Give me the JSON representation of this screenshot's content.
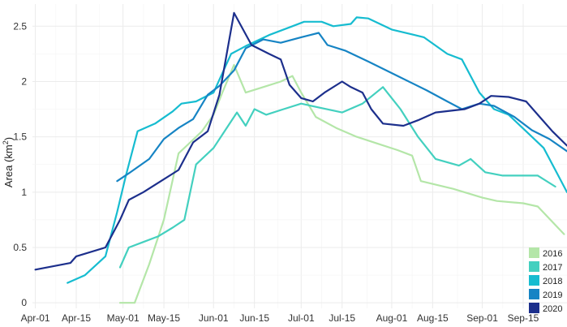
{
  "chart_data": {
    "type": "line",
    "title": "",
    "xlabel": "",
    "ylabel": "Area",
    "ylabel_unit_base": "km",
    "ylabel_unit_exp": "2",
    "x_ticks": [
      "Apr-01",
      "Apr-15",
      "May-01",
      "May-15",
      "Jun-01",
      "Jun-15",
      "Jul-01",
      "Jul-15",
      "Aug-01",
      "Aug-15",
      "Sep-01",
      "Sep-15"
    ],
    "xlim": [
      "2020-03-31",
      "2020-09-30"
    ],
    "y_ticks": [
      "0",
      "0.5",
      "1",
      "1.5",
      "2",
      "2.5"
    ],
    "ylim": [
      -0.05,
      2.7
    ],
    "grid": true,
    "legend_position": "bottom-right",
    "series": [
      {
        "name": "2016",
        "color": "#b4e6a8",
        "points": [
          [
            "2020-04-30",
            0.0
          ],
          [
            "2020-05-05",
            0.0
          ],
          [
            "2020-05-10",
            0.35
          ],
          [
            "2020-05-15",
            0.75
          ],
          [
            "2020-05-20",
            1.35
          ],
          [
            "2020-05-24",
            1.45
          ],
          [
            "2020-05-28",
            1.55
          ],
          [
            "2020-06-01",
            1.7
          ],
          [
            "2020-06-04",
            1.9
          ],
          [
            "2020-06-08",
            2.15
          ],
          [
            "2020-06-12",
            1.9
          ],
          [
            "2020-06-18",
            1.95
          ],
          [
            "2020-06-24",
            2.0
          ],
          [
            "2020-06-28",
            2.05
          ],
          [
            "2020-07-01",
            1.9
          ],
          [
            "2020-07-06",
            1.68
          ],
          [
            "2020-07-13",
            1.58
          ],
          [
            "2020-07-20",
            1.5
          ],
          [
            "2020-07-27",
            1.44
          ],
          [
            "2020-08-03",
            1.38
          ],
          [
            "2020-08-08",
            1.33
          ],
          [
            "2020-08-11",
            1.1
          ],
          [
            "2020-08-22",
            1.03
          ],
          [
            "2020-09-01",
            0.95
          ],
          [
            "2020-09-06",
            0.92
          ],
          [
            "2020-09-15",
            0.9
          ],
          [
            "2020-09-20",
            0.87
          ],
          [
            "2020-09-29",
            0.62
          ]
        ]
      },
      {
        "name": "2017",
        "color": "#43d0bf",
        "points": [
          [
            "2020-04-30",
            0.32
          ],
          [
            "2020-05-03",
            0.5
          ],
          [
            "2020-05-08",
            0.55
          ],
          [
            "2020-05-13",
            0.6
          ],
          [
            "2020-05-18",
            0.68
          ],
          [
            "2020-05-22",
            0.75
          ],
          [
            "2020-05-26",
            1.25
          ],
          [
            "2020-06-01",
            1.4
          ],
          [
            "2020-06-06",
            1.6
          ],
          [
            "2020-06-09",
            1.72
          ],
          [
            "2020-06-12",
            1.6
          ],
          [
            "2020-06-15",
            1.75
          ],
          [
            "2020-06-19",
            1.7
          ],
          [
            "2020-06-25",
            1.75
          ],
          [
            "2020-07-01",
            1.8
          ],
          [
            "2020-07-08",
            1.76
          ],
          [
            "2020-07-15",
            1.72
          ],
          [
            "2020-07-22",
            1.8
          ],
          [
            "2020-07-29",
            1.95
          ],
          [
            "2020-08-04",
            1.75
          ],
          [
            "2020-08-10",
            1.5
          ],
          [
            "2020-08-16",
            1.3
          ],
          [
            "2020-08-24",
            1.24
          ],
          [
            "2020-08-28",
            1.3
          ],
          [
            "2020-09-02",
            1.18
          ],
          [
            "2020-09-08",
            1.15
          ],
          [
            "2020-09-20",
            1.15
          ],
          [
            "2020-09-26",
            1.05
          ]
        ]
      },
      {
        "name": "2018",
        "color": "#16bcd0",
        "points": [
          [
            "2020-04-12",
            0.18
          ],
          [
            "2020-04-18",
            0.25
          ],
          [
            "2020-04-25",
            0.42
          ],
          [
            "2020-04-29",
            0.82
          ],
          [
            "2020-05-02",
            1.15
          ],
          [
            "2020-05-06",
            1.55
          ],
          [
            "2020-05-12",
            1.62
          ],
          [
            "2020-05-18",
            1.73
          ],
          [
            "2020-05-21",
            1.8
          ],
          [
            "2020-05-26",
            1.82
          ],
          [
            "2020-06-01",
            1.9
          ],
          [
            "2020-06-07",
            2.25
          ],
          [
            "2020-06-12",
            2.32
          ],
          [
            "2020-06-20",
            2.42
          ],
          [
            "2020-06-28",
            2.5
          ],
          [
            "2020-07-02",
            2.54
          ],
          [
            "2020-07-08",
            2.54
          ],
          [
            "2020-07-12",
            2.5
          ],
          [
            "2020-07-18",
            2.52
          ],
          [
            "2020-07-20",
            2.58
          ],
          [
            "2020-07-24",
            2.57
          ],
          [
            "2020-08-01",
            2.47
          ],
          [
            "2020-08-12",
            2.4
          ],
          [
            "2020-08-20",
            2.25
          ],
          [
            "2020-08-25",
            2.2
          ],
          [
            "2020-08-31",
            1.9
          ],
          [
            "2020-09-05",
            1.75
          ],
          [
            "2020-09-10",
            1.7
          ],
          [
            "2020-09-16",
            1.55
          ],
          [
            "2020-09-22",
            1.4
          ],
          [
            "2020-09-26",
            1.2
          ],
          [
            "2020-09-30",
            1.0
          ]
        ]
      },
      {
        "name": "2019",
        "color": "#1684c4",
        "points": [
          [
            "2020-04-29",
            1.1
          ],
          [
            "2020-05-03",
            1.17
          ],
          [
            "2020-05-10",
            1.3
          ],
          [
            "2020-05-15",
            1.48
          ],
          [
            "2020-05-20",
            1.58
          ],
          [
            "2020-05-25",
            1.66
          ],
          [
            "2020-05-30",
            1.88
          ],
          [
            "2020-06-03",
            1.96
          ],
          [
            "2020-06-08",
            2.1
          ],
          [
            "2020-06-12",
            2.3
          ],
          [
            "2020-06-18",
            2.38
          ],
          [
            "2020-06-24",
            2.35
          ],
          [
            "2020-07-01",
            2.4
          ],
          [
            "2020-07-07",
            2.44
          ],
          [
            "2020-07-10",
            2.33
          ],
          [
            "2020-07-16",
            2.28
          ],
          [
            "2020-07-24",
            2.18
          ],
          [
            "2020-08-03",
            2.05
          ],
          [
            "2020-08-13",
            1.92
          ],
          [
            "2020-08-20",
            1.82
          ],
          [
            "2020-08-25",
            1.75
          ],
          [
            "2020-08-31",
            1.8
          ],
          [
            "2020-09-05",
            1.78
          ],
          [
            "2020-09-12",
            1.68
          ],
          [
            "2020-09-18",
            1.56
          ],
          [
            "2020-09-24",
            1.48
          ],
          [
            "2020-09-30",
            1.37
          ]
        ]
      },
      {
        "name": "2020",
        "color": "#1c2f8c",
        "points": [
          [
            "2020-04-01",
            0.3
          ],
          [
            "2020-04-13",
            0.36
          ],
          [
            "2020-04-15",
            0.42
          ],
          [
            "2020-04-25",
            0.5
          ],
          [
            "2020-04-30",
            0.75
          ],
          [
            "2020-05-03",
            0.93
          ],
          [
            "2020-05-08",
            1.0
          ],
          [
            "2020-05-14",
            1.1
          ],
          [
            "2020-05-20",
            1.2
          ],
          [
            "2020-05-25",
            1.45
          ],
          [
            "2020-05-30",
            1.55
          ],
          [
            "2020-06-03",
            1.88
          ],
          [
            "2020-06-08",
            2.62
          ],
          [
            "2020-06-14",
            2.33
          ],
          [
            "2020-06-20",
            2.25
          ],
          [
            "2020-06-24",
            2.2
          ],
          [
            "2020-06-27",
            1.97
          ],
          [
            "2020-07-01",
            1.85
          ],
          [
            "2020-07-05",
            1.82
          ],
          [
            "2020-07-09",
            1.9
          ],
          [
            "2020-07-15",
            2.0
          ],
          [
            "2020-07-18",
            1.95
          ],
          [
            "2020-07-22",
            1.9
          ],
          [
            "2020-07-25",
            1.75
          ],
          [
            "2020-07-29",
            1.62
          ],
          [
            "2020-08-05",
            1.6
          ],
          [
            "2020-08-10",
            1.65
          ],
          [
            "2020-08-16",
            1.72
          ],
          [
            "2020-08-26",
            1.75
          ],
          [
            "2020-08-31",
            1.8
          ],
          [
            "2020-09-04",
            1.87
          ],
          [
            "2020-09-10",
            1.86
          ],
          [
            "2020-09-16",
            1.82
          ],
          [
            "2020-09-21",
            1.67
          ],
          [
            "2020-09-25",
            1.55
          ],
          [
            "2020-09-30",
            1.42
          ]
        ]
      }
    ]
  }
}
